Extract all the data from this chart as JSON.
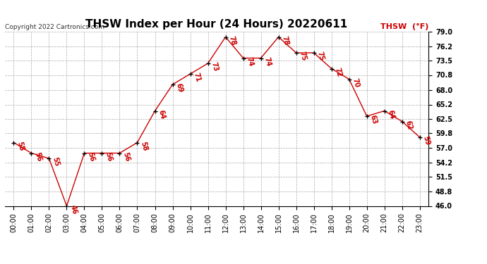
{
  "title": "THSW Index per Hour (24 Hours) 20220611",
  "copyright": "Copyright 2022 Cartronics.com",
  "legend_label": "THSW  (°F)",
  "hours": [
    "00:00",
    "01:00",
    "02:00",
    "03:00",
    "04:00",
    "05:00",
    "06:00",
    "07:00",
    "08:00",
    "09:00",
    "10:00",
    "11:00",
    "12:00",
    "13:00",
    "14:00",
    "15:00",
    "16:00",
    "17:00",
    "18:00",
    "19:00",
    "20:00",
    "21:00",
    "22:00",
    "23:00"
  ],
  "values": [
    58,
    56,
    55,
    46,
    56,
    56,
    56,
    58,
    64,
    69,
    71,
    73,
    78,
    74,
    74,
    78,
    75,
    75,
    72,
    70,
    63,
    64,
    62,
    59
  ],
  "line_color": "#cc0000",
  "marker_color": "#000000",
  "ylim": [
    46.0,
    79.0
  ],
  "yticks": [
    46.0,
    48.8,
    51.5,
    54.2,
    57.0,
    59.8,
    62.5,
    65.2,
    68.0,
    70.8,
    73.5,
    76.2,
    79.0
  ],
  "background_color": "#ffffff",
  "grid_color": "#aaaaaa",
  "title_fontsize": 11,
  "label_fontsize": 7,
  "annotation_fontsize": 7,
  "copyright_fontsize": 6.5,
  "legend_fontsize": 8
}
